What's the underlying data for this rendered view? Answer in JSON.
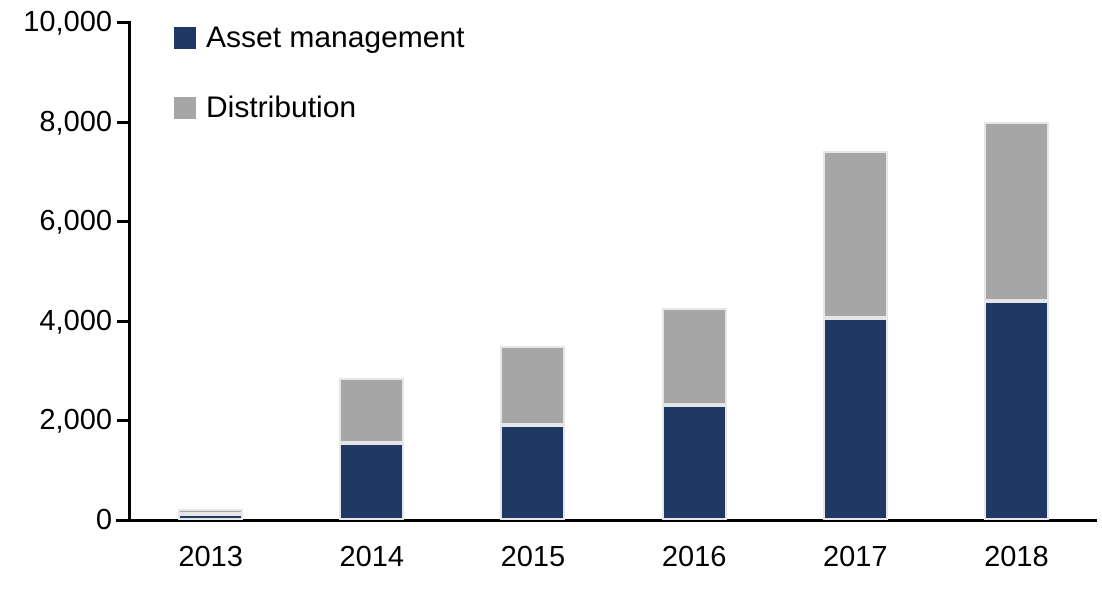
{
  "chart_data": {
    "type": "bar",
    "stacked": true,
    "title": "",
    "xlabel": "",
    "ylabel": "",
    "categories": [
      "2013",
      "2014",
      "2015",
      "2016",
      "2017",
      "2018"
    ],
    "series": [
      {
        "name": "Asset management",
        "color": "#1f3864",
        "values": [
          120,
          1550,
          1900,
          2300,
          4050,
          4400
        ]
      },
      {
        "name": "Distribution",
        "color": "#a6a6a6",
        "values": [
          100,
          1300,
          1600,
          1950,
          3350,
          3600
        ]
      }
    ],
    "stack_totals": [
      220,
      2850,
      3500,
      4250,
      7400,
      8000
    ],
    "ylim": [
      0,
      10000
    ],
    "yticks": [
      0,
      2000,
      4000,
      6000,
      8000,
      10000
    ],
    "ytick_labels": [
      "0",
      "2,000",
      "4,000",
      "6,000",
      "8,000",
      "10,000"
    ],
    "grid": false,
    "legend_position": "top-left"
  },
  "colors": {
    "axis": "#000000",
    "text": "#000000",
    "bar_border": "#e6e6e6",
    "background": "#ffffff"
  }
}
